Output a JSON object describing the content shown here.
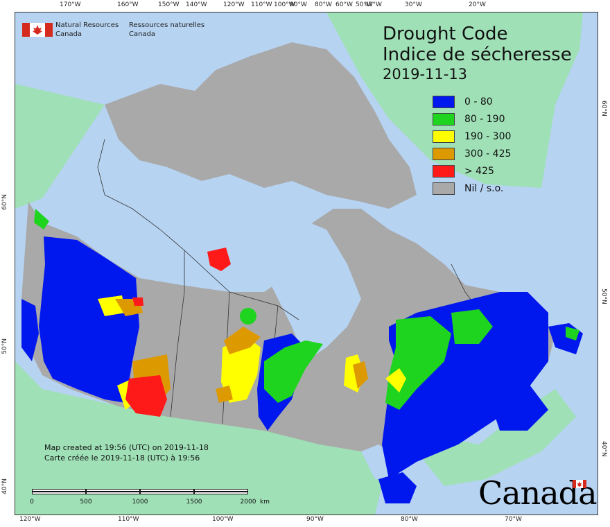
{
  "map": {
    "title_en": "Drought Code",
    "title_fr": "Indice de sécheresse",
    "date": "2019-11-13",
    "agency_en_line1": "Natural Resources",
    "agency_en_line2": "Canada",
    "agency_fr_line1": "Ressources naturelles",
    "agency_fr_line2": "Canada",
    "credit_en": "Map created at 19:56 (UTC) on 2019-11-18",
    "credit_fr": "Carte créée le 2019-11-18 (UTC) à 19:56",
    "wordmark": "Canada",
    "colors": {
      "ocean": "#b6d3f2",
      "foreign_land": "#9fe0b6",
      "nil": "#a9a9a9",
      "blue": "#0018ee",
      "green": "#1ed41e",
      "yellow": "#ffff00",
      "orange": "#dd9900",
      "red": "#ff1a1a",
      "lake": "#b6d3f2"
    }
  },
  "legend": [
    {
      "label": "0 - 80",
      "color": "#0018ee"
    },
    {
      "label": "80 - 190",
      "color": "#1ed41e"
    },
    {
      "label": "190 - 300",
      "color": "#ffff00"
    },
    {
      "label": "300 - 425",
      "color": "#dd9900"
    },
    {
      "label": "> 425",
      "color": "#ff1a1a"
    },
    {
      "label": "Nil / s.o.",
      "color": "#a9a9a9"
    }
  ],
  "graticule": {
    "top": [
      "170°W",
      "160°W",
      "150°W",
      "140°W",
      "120°W",
      "110°W",
      "100°W",
      "90°W",
      "80°W",
      "60°W",
      "50°W",
      "40°W",
      "30°W",
      "20°W"
    ],
    "bottom": [
      "120°W",
      "110°W",
      "100°W",
      "90°W",
      "80°W",
      "70°W"
    ],
    "left": [
      "60°N",
      "50°N",
      "40°N"
    ],
    "right": [
      "60°N",
      "50°N",
      "40°N"
    ]
  },
  "scale": {
    "labels": [
      "0",
      "500",
      "1000",
      "1500",
      "2000"
    ],
    "unit": "km"
  }
}
